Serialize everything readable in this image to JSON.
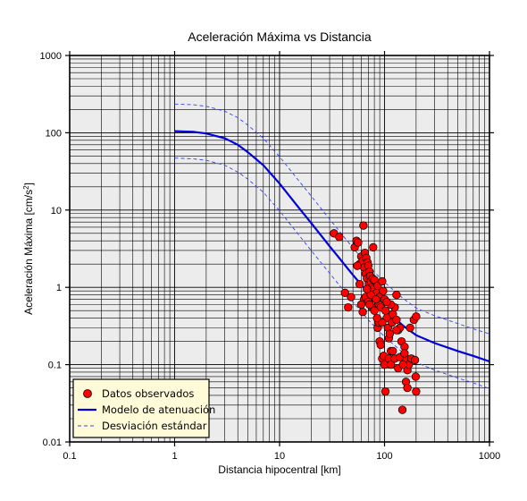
{
  "chart_data": {
    "type": "scatter",
    "title": "Aceleración Máxima vs Distancia",
    "xlabel": "Distancia hipocentral [km]",
    "ylabel": "Aceleración Máxima [cm/s",
    "ylabel_sup": "2",
    "ylabel_end": "]",
    "xscale": "log",
    "yscale": "log",
    "xlim": [
      0.1,
      1000
    ],
    "ylim": [
      0.01,
      1000
    ],
    "xticks": [
      0.1,
      1,
      10,
      100,
      1000
    ],
    "xtick_labels": [
      "0.1",
      "1",
      "10",
      "100",
      "1000"
    ],
    "yticks": [
      0.01,
      0.1,
      1,
      10,
      100,
      1000
    ],
    "ytick_labels": [
      "0.01",
      "0.1",
      "1",
      "10",
      "100",
      "1000"
    ],
    "grid": true,
    "legend_position": "bottom-left",
    "series": [
      {
        "name": "Datos observados",
        "kind": "points",
        "color": "#ff0000",
        "points": [
          [
            33,
            5.0
          ],
          [
            37,
            4.5
          ],
          [
            63,
            6.3
          ],
          [
            78,
            3.3
          ],
          [
            42,
            0.85
          ],
          [
            45,
            0.55
          ],
          [
            48,
            0.75
          ],
          [
            52,
            3.3
          ],
          [
            54,
            4.0
          ],
          [
            56,
            3.8
          ],
          [
            58,
            2.0
          ],
          [
            60,
            2.5
          ],
          [
            62,
            2.2
          ],
          [
            64,
            1.8
          ],
          [
            65,
            2.8
          ],
          [
            66,
            1.5
          ],
          [
            67,
            2.4
          ],
          [
            68,
            1.3
          ],
          [
            69,
            2.1
          ],
          [
            70,
            1.9
          ],
          [
            71,
            1.1
          ],
          [
            72,
            1.6
          ],
          [
            73,
            1.4
          ],
          [
            74,
            1.2
          ],
          [
            75,
            0.9
          ],
          [
            76,
            1.0
          ],
          [
            77,
            1.3
          ],
          [
            78,
            0.95
          ],
          [
            80,
            1.25
          ],
          [
            82,
            0.8
          ],
          [
            84,
            0.85
          ],
          [
            86,
            1.05
          ],
          [
            88,
            0.6
          ],
          [
            90,
            0.75
          ],
          [
            92,
            0.55
          ],
          [
            95,
            1.2
          ],
          [
            97,
            0.9
          ],
          [
            100,
            0.7
          ],
          [
            102,
            0.5
          ],
          [
            105,
            0.4
          ],
          [
            108,
            0.3
          ],
          [
            110,
            0.22
          ],
          [
            112,
            0.25
          ],
          [
            115,
            0.15
          ],
          [
            118,
            0.35
          ],
          [
            120,
            0.45
          ],
          [
            125,
            0.55
          ],
          [
            130,
            0.38
          ],
          [
            135,
            0.28
          ],
          [
            140,
            0.3
          ],
          [
            145,
            0.2
          ],
          [
            150,
            0.13
          ],
          [
            155,
            0.17
          ],
          [
            160,
            0.12
          ],
          [
            165,
            0.085
          ],
          [
            170,
            0.1
          ],
          [
            175,
            0.3
          ],
          [
            180,
            0.12
          ],
          [
            190,
            0.38
          ],
          [
            200,
            0.42
          ],
          [
            195,
            0.115
          ],
          [
            198,
            0.07
          ],
          [
            200,
            0.045
          ],
          [
            62,
            0.48
          ],
          [
            64,
            0.7
          ],
          [
            66,
            0.75
          ],
          [
            70,
            0.65
          ],
          [
            74,
            0.8
          ],
          [
            76,
            0.55
          ],
          [
            80,
            0.5
          ],
          [
            83,
            0.7
          ],
          [
            86,
            0.3
          ],
          [
            88,
            0.35
          ],
          [
            90,
            0.2
          ],
          [
            92,
            0.18
          ],
          [
            95,
            0.12
          ],
          [
            98,
            0.13
          ],
          [
            100,
            0.1
          ],
          [
            102,
            0.045
          ],
          [
            110,
            0.12
          ],
          [
            115,
            0.1
          ],
          [
            120,
            0.15
          ],
          [
            125,
            0.12
          ],
          [
            130,
            0.28
          ],
          [
            135,
            0.09
          ],
          [
            140,
            0.125
          ],
          [
            150,
            0.1
          ],
          [
            155,
            0.14
          ],
          [
            160,
            0.06
          ],
          [
            165,
            0.05
          ],
          [
            148,
            0.026
          ],
          [
            130,
            0.8
          ],
          [
            115,
            0.6
          ],
          [
            105,
            0.65
          ],
          [
            95,
            0.35
          ],
          [
            85,
            0.4
          ],
          [
            72,
            0.6
          ],
          [
            68,
            0.95
          ],
          [
            58,
            1.1
          ],
          [
            55,
            1.9
          ],
          [
            60,
            0.6
          ]
        ]
      },
      {
        "name": "Modelo de atenuación",
        "kind": "line",
        "color": "#0000dd",
        "x": [
          1,
          1.5,
          2,
          3,
          4,
          5,
          7,
          10,
          15,
          20,
          30,
          50,
          70,
          100,
          150,
          200,
          300,
          500,
          700,
          1000
        ],
        "y": [
          105,
          103,
          98,
          85,
          70,
          56,
          38,
          22,
          11,
          6.8,
          3.4,
          1.45,
          0.85,
          0.52,
          0.32,
          0.24,
          0.19,
          0.15,
          0.13,
          0.11
        ]
      },
      {
        "name": "Desviación estándar",
        "kind": "dashed-line",
        "color": "#3344ee",
        "x": [
          1,
          1.5,
          2,
          3,
          4,
          5,
          7,
          10,
          15,
          20,
          30,
          50,
          70,
          100,
          150,
          200,
          300,
          500,
          700,
          1000
        ],
        "y": [
          235,
          231,
          220,
          190,
          157,
          125,
          85,
          49,
          24.6,
          15.2,
          7.6,
          3.25,
          1.9,
          1.16,
          0.72,
          0.54,
          0.43,
          0.34,
          0.29,
          0.25
        ]
      },
      {
        "name": "",
        "kind": "dashed-line",
        "color": "#3344ee",
        "x": [
          1,
          1.5,
          2,
          3,
          4,
          5,
          7,
          10,
          15,
          20,
          30,
          50,
          70,
          100,
          150,
          200,
          300,
          500,
          700,
          1000
        ],
        "y": [
          47,
          46,
          44,
          38,
          31,
          25,
          17,
          9.8,
          4.9,
          3.0,
          1.52,
          0.65,
          0.38,
          0.23,
          0.143,
          0.107,
          0.085,
          0.067,
          0.058,
          0.049
        ]
      }
    ]
  },
  "legend": {
    "items": [
      {
        "label": "Datos observados"
      },
      {
        "label": "Modelo de atenuación"
      },
      {
        "label": "Desviación estándar"
      }
    ]
  },
  "colors": {
    "plot_bg": "#ececec",
    "legend_bg": "#fffbd8",
    "marker_fill": "#ff0000",
    "model_line": "#0000dd",
    "std_line": "#3344ee"
  }
}
